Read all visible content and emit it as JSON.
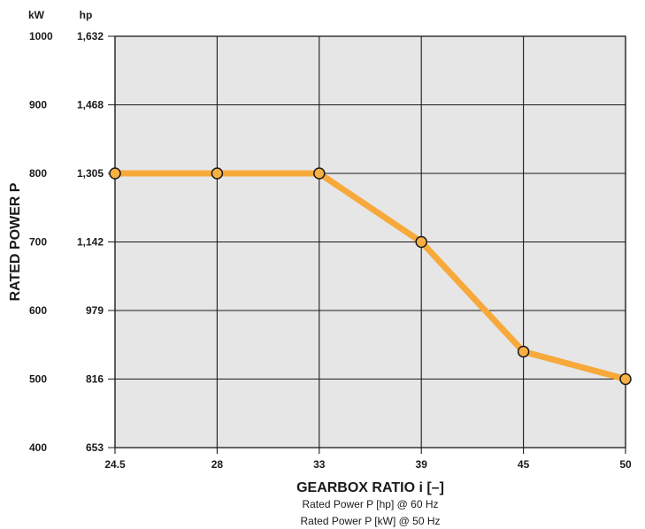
{
  "chart_data": {
    "type": "line",
    "x": [
      "24.5",
      "28",
      "33",
      "39",
      "45",
      "50"
    ],
    "y_kw": [
      800,
      800,
      800,
      700,
      540,
      500
    ],
    "y_left_unit": "kW",
    "y_right_unit": "hp",
    "y_ticks_kw": [
      "1000",
      "900",
      "800",
      "700",
      "600",
      "500",
      "400"
    ],
    "y_ticks_hp": [
      "1,632",
      "1,468",
      "1,305",
      "1,142",
      "979",
      "816",
      "653"
    ],
    "ylim": [
      400,
      1000
    ],
    "xlabel": "GEARBOX RATIO i [–]",
    "ylabel": "RATED POWER P",
    "notes": [
      "Rated Power P [hp] @ 60 Hz",
      "Rated Power P [kW] @ 50 Hz"
    ],
    "grid": true,
    "colors": {
      "line": "#f7a93b",
      "marker_fill": "#f9b043",
      "plot_bg": "#e6e6e6",
      "grid": "#1a1a1a"
    }
  }
}
